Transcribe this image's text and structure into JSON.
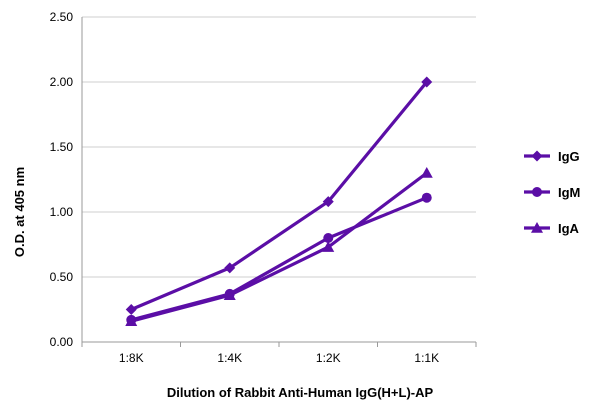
{
  "chart_data": {
    "type": "line",
    "title": "",
    "xlabel": "Dilution of Rabbit Anti-Human IgG(H+L)-AP",
    "ylabel": "O.D. at 405 nm",
    "categories": [
      "1:8K",
      "1:4K",
      "1:2K",
      "1:1K"
    ],
    "ylim": [
      0,
      2.5
    ],
    "yticks": [
      "0.00",
      "0.50",
      "1.00",
      "1.50",
      "2.00",
      "2.50"
    ],
    "grid": true,
    "legend_position": "right",
    "line_color": "#5B0EA6",
    "series": [
      {
        "name": "IgG",
        "marker": "diamond",
        "values": [
          0.25,
          0.57,
          1.08,
          2.0
        ]
      },
      {
        "name": "IgM",
        "marker": "circle",
        "values": [
          0.17,
          0.37,
          0.8,
          1.11
        ]
      },
      {
        "name": "IgA",
        "marker": "triangle",
        "values": [
          0.16,
          0.36,
          0.73,
          1.3
        ]
      }
    ]
  }
}
